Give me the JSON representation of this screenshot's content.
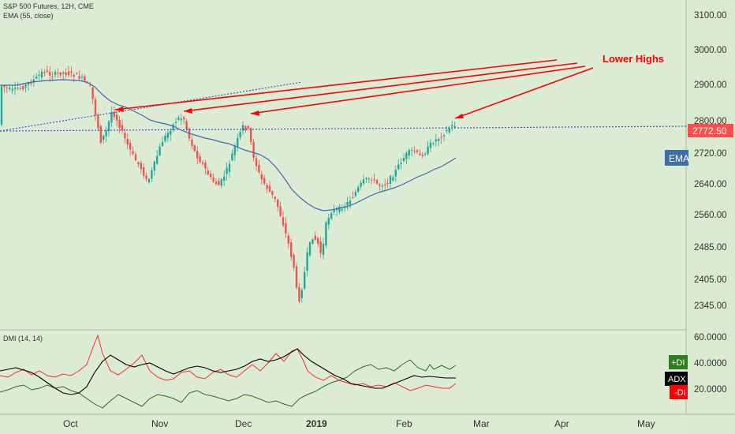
{
  "header": {
    "symbol_line": "S&P 500 Futures, 12H, CME",
    "ema_line": "EMA (55, close)",
    "dmi_line": "DMI (14, 14)"
  },
  "annotation": {
    "text": "Lower Highs",
    "color": "#ff0000"
  },
  "price_tag": {
    "value": "2772.50",
    "color": "#ff4d4d"
  },
  "ema_tag": {
    "label": "EMA",
    "color": "#3f6fa7"
  },
  "dmi_tags": [
    {
      "label": "+DI",
      "color": "#2f7d1e"
    },
    {
      "label": "ADX",
      "color": "#000000"
    },
    {
      "label": "-DI",
      "color": "#ff0000"
    }
  ],
  "chart_data": {
    "type": "candlestick",
    "x_ticks": [
      "Oct",
      "Nov",
      "Dec",
      "2019",
      "Feb",
      "Mar",
      "Apr",
      "May"
    ],
    "y_ticks": [
      "3100.00",
      "3000.00",
      "2900.00",
      "2800.00",
      "2720.00",
      "2640.00",
      "2560.00",
      "2485.00",
      "2405.00",
      "2345.00"
    ],
    "dmi_ticks": [
      "60.0000",
      "40.0000",
      "20.0000"
    ],
    "key_points": [
      {
        "x": "mid-Oct",
        "y": 2820
      },
      {
        "x": "early Nov",
        "y": 2815
      },
      {
        "x": "early Dec",
        "y": 2800
      },
      {
        "x": "late Feb",
        "y": 2790
      },
      {
        "x": "late Dec",
        "y": 2320
      }
    ],
    "last_price": 2772.5,
    "colors": {
      "up": "#26a69a",
      "down": "#ef5350",
      "ema": "#3a6aa8",
      "trend": "#3950c8"
    }
  }
}
